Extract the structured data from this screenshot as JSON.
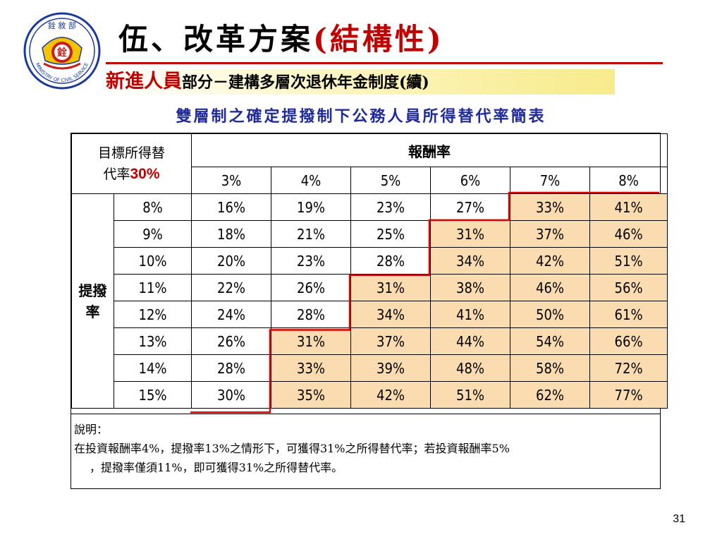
{
  "logo": {
    "top_text": "銓 敘 部",
    "ring_text": "MINISTRY OF CIVIL SERVICE",
    "center_char": "銓",
    "color_blue": "#1a3a9a",
    "color_red": "#c81e1e",
    "color_yellow": "#f5c400"
  },
  "title": {
    "prefix": "伍、改革方案",
    "highlight": "(結構性)"
  },
  "subtitle": {
    "highlight": "新進人員",
    "rest": "部分－建構多層次退休年金制度(續)"
  },
  "table_title": "雙層制之確定提撥制下公務人員所得替代率簡表",
  "table": {
    "corner_line1": "目標所得替",
    "corner_line2": "代率",
    "corner_pct": "30%",
    "col_group_label": "報酬率",
    "row_group_label": "提撥率",
    "return_rates": [
      "3%",
      "4%",
      "5%",
      "6%",
      "7%",
      "8%"
    ],
    "rows": [
      {
        "rate": "8%",
        "values": [
          "16%",
          "19%",
          "23%",
          "27%",
          "33%",
          "41%"
        ]
      },
      {
        "rate": "9%",
        "values": [
          "18%",
          "21%",
          "25%",
          "31%",
          "37%",
          "46%"
        ]
      },
      {
        "rate": "10%",
        "values": [
          "20%",
          "23%",
          "28%",
          "34%",
          "42%",
          "51%"
        ]
      },
      {
        "rate": "11%",
        "values": [
          "22%",
          "26%",
          "31%",
          "38%",
          "46%",
          "56%"
        ]
      },
      {
        "rate": "12%",
        "values": [
          "24%",
          "28%",
          "34%",
          "41%",
          "50%",
          "61%"
        ]
      },
      {
        "rate": "13%",
        "values": [
          "26%",
          "31%",
          "37%",
          "44%",
          "54%",
          "66%"
        ]
      },
      {
        "rate": "14%",
        "values": [
          "28%",
          "33%",
          "39%",
          "48%",
          "58%",
          "72%"
        ]
      },
      {
        "rate": "15%",
        "values": [
          "30%",
          "35%",
          "42%",
          "51%",
          "62%",
          "77%"
        ]
      }
    ],
    "highlight_color": "#fbdcb0",
    "stair_color": "#e00000"
  },
  "note": {
    "label": "說明：",
    "line1": "在投資報酬率4%，提撥率13%之情形下，可獲得31%之所得替代率；若投資報酬率5%",
    "line2": "，提撥率僅須11%，即可獲得31%之所得替代率。"
  },
  "page_number": "31"
}
